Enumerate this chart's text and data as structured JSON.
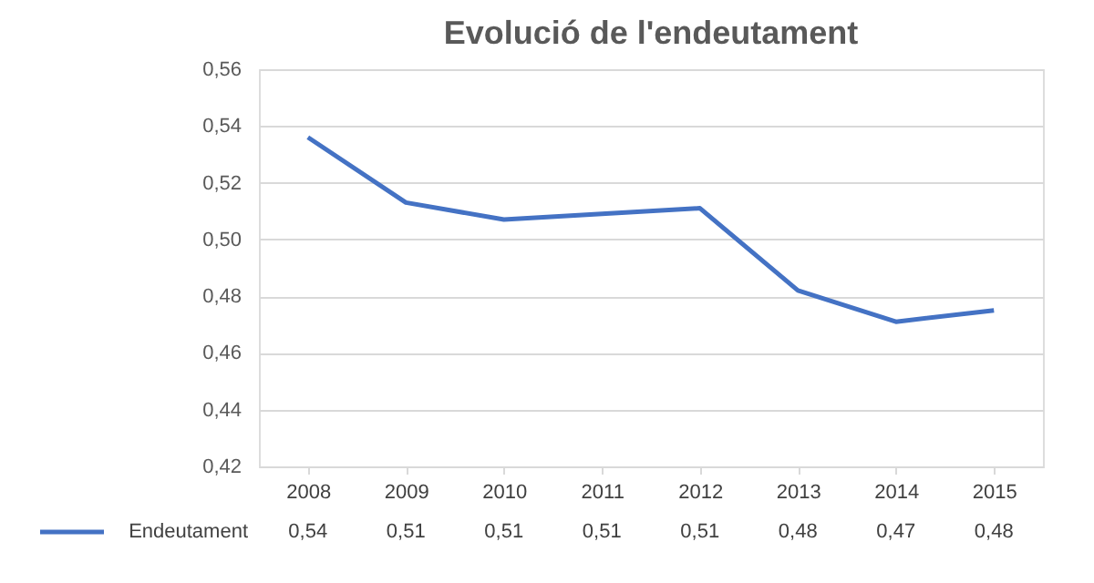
{
  "chart_data": {
    "type": "line",
    "title": "Evolució de l'endeutament",
    "categories": [
      "2008",
      "2009",
      "2010",
      "2011",
      "2012",
      "2013",
      "2014",
      "2015"
    ],
    "series": [
      {
        "name": "Endeutament",
        "color": "#4472c4",
        "values": [
          0.536,
          0.513,
          0.507,
          0.509,
          0.511,
          0.482,
          0.471,
          0.475
        ],
        "value_labels": [
          "0,54",
          "0,51",
          "0,51",
          "0,51",
          "0,51",
          "0,48",
          "0,47",
          "0,48"
        ]
      }
    ],
    "ylim": [
      0.42,
      0.56
    ],
    "yticks": [
      {
        "value": 0.42,
        "label": "0,42"
      },
      {
        "value": 0.44,
        "label": "0,44"
      },
      {
        "value": 0.46,
        "label": "0,46"
      },
      {
        "value": 0.48,
        "label": "0,48"
      },
      {
        "value": 0.5,
        "label": "0,50"
      },
      {
        "value": 0.52,
        "label": "0,52"
      },
      {
        "value": 0.54,
        "label": "0,54"
      },
      {
        "value": 0.56,
        "label": "0,56"
      }
    ],
    "grid": "y",
    "marker": "none",
    "line_style": "solid",
    "legend": "bottom"
  }
}
